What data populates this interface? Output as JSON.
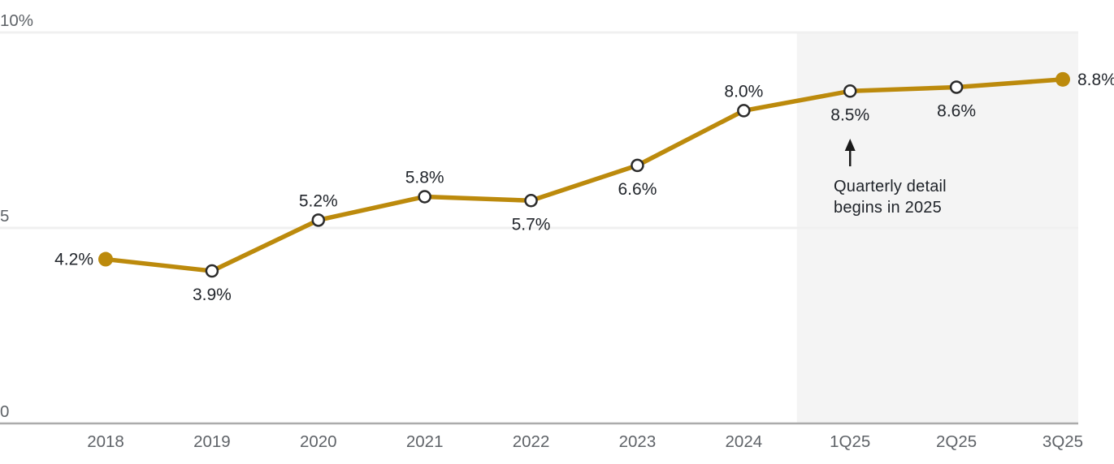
{
  "chart_data": {
    "type": "line",
    "title": "",
    "categories": [
      "2018",
      "2019",
      "2020",
      "2021",
      "2022",
      "2023",
      "2024",
      "1Q25",
      "2Q25",
      "3Q25"
    ],
    "values": [
      4.2,
      3.9,
      5.2,
      5.8,
      5.7,
      6.6,
      8.0,
      8.5,
      8.6,
      8.8
    ],
    "point_labels": [
      "4.2%",
      "3.9%",
      "5.2%",
      "5.8%",
      "5.7%",
      "6.6%",
      "8.0%",
      "8.5%",
      "8.6%",
      "8.8%"
    ],
    "label_positions": [
      "left",
      "below",
      "above",
      "above",
      "below",
      "below",
      "above",
      "below",
      "below",
      "right"
    ],
    "marker_styles": [
      "filled",
      "open",
      "open",
      "open",
      "open",
      "open",
      "open",
      "open",
      "open",
      "filled"
    ],
    "xlabel": "",
    "ylabel": "",
    "ylim": [
      0,
      10
    ],
    "y_ticks": [
      {
        "value": 0,
        "label": "0"
      },
      {
        "value": 5,
        "label": "5"
      },
      {
        "value": 10,
        "label": "10%"
      }
    ],
    "grid": "horizontal",
    "legend": "none",
    "colors": {
      "line": "#BC8A0C",
      "marker_fill": "#FFFFFF",
      "marker_stroke": "#2B2B2B",
      "gridline": "#F0F0F0",
      "axis_line": "#ABABAB",
      "axis_label": "#5F6368",
      "point_label": "#22262C",
      "shaded_region": "#F4F4F4",
      "annotation_arrow": "#1A1A1A"
    },
    "shaded_region": {
      "from_category": "1Q25",
      "to_category": "3Q25",
      "note": "shaded band behind quarterly data points"
    },
    "annotation": {
      "lines": [
        "Quarterly detail",
        "begins in 2025"
      ],
      "arrow_direction": "up",
      "target_category": "1Q25"
    }
  }
}
